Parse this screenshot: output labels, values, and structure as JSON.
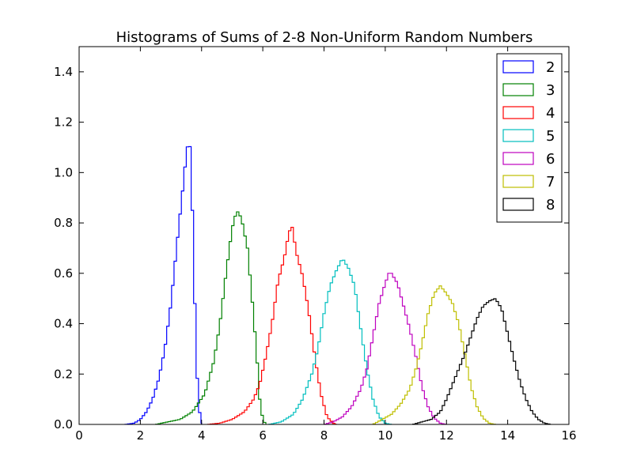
{
  "chart_data": {
    "type": "histogram",
    "histtype": "step",
    "title": "Histograms of Sums of 2-8 Non-Uniform Random Numbers",
    "xlabel": "",
    "ylabel": "",
    "xlim": [
      0,
      16
    ],
    "ylim": [
      0,
      1.5
    ],
    "xticks": [
      0,
      2,
      4,
      6,
      8,
      10,
      12,
      14,
      16
    ],
    "yticks": [
      0.0,
      0.2,
      0.4,
      0.6,
      0.8,
      1.0,
      1.2,
      1.4
    ],
    "xtick_labels": [
      "0",
      "2",
      "4",
      "6",
      "8",
      "10",
      "12",
      "14",
      "16"
    ],
    "ytick_labels": [
      "0.0",
      "0.2",
      "0.4",
      "0.6",
      "0.8",
      "1.0",
      "1.2",
      "1.4"
    ],
    "grid": false,
    "legend_position": "top-right",
    "series": [
      {
        "name": "2",
        "color": "#0000ff",
        "peak_x": 3.55,
        "peak_y": 1.11,
        "points": [
          [
            1.5,
            0
          ],
          [
            1.8,
            0.005
          ],
          [
            2.0,
            0.02
          ],
          [
            2.2,
            0.05
          ],
          [
            2.4,
            0.1
          ],
          [
            2.6,
            0.18
          ],
          [
            2.8,
            0.3
          ],
          [
            3.0,
            0.48
          ],
          [
            3.2,
            0.72
          ],
          [
            3.4,
            0.95
          ],
          [
            3.5,
            1.07
          ],
          [
            3.55,
            1.11
          ],
          [
            3.65,
            1.1
          ],
          [
            3.75,
            0.6
          ],
          [
            3.85,
            0.2
          ],
          [
            3.95,
            0.03
          ],
          [
            4.0,
            0
          ]
        ]
      },
      {
        "name": "3",
        "color": "#008000",
        "peak_x": 5.15,
        "peak_y": 0.85,
        "points": [
          [
            2.5,
            0
          ],
          [
            2.9,
            0.01
          ],
          [
            3.3,
            0.02
          ],
          [
            3.7,
            0.05
          ],
          [
            4.1,
            0.12
          ],
          [
            4.4,
            0.25
          ],
          [
            4.6,
            0.4
          ],
          [
            4.8,
            0.6
          ],
          [
            5.0,
            0.78
          ],
          [
            5.15,
            0.85
          ],
          [
            5.3,
            0.82
          ],
          [
            5.5,
            0.7
          ],
          [
            5.65,
            0.5
          ],
          [
            5.8,
            0.28
          ],
          [
            5.9,
            0.1
          ],
          [
            6.0,
            0.02
          ],
          [
            6.1,
            0
          ]
        ]
      },
      {
        "name": "4",
        "color": "#ff0000",
        "peak_x": 6.9,
        "peak_y": 0.79,
        "points": [
          [
            4.2,
            0
          ],
          [
            4.6,
            0.005
          ],
          [
            5.0,
            0.02
          ],
          [
            5.4,
            0.05
          ],
          [
            5.7,
            0.1
          ],
          [
            5.9,
            0.16
          ],
          [
            6.1,
            0.27
          ],
          [
            6.3,
            0.4
          ],
          [
            6.5,
            0.57
          ],
          [
            6.7,
            0.66
          ],
          [
            6.85,
            0.76
          ],
          [
            6.95,
            0.79
          ],
          [
            7.1,
            0.68
          ],
          [
            7.3,
            0.59
          ],
          [
            7.5,
            0.45
          ],
          [
            7.7,
            0.27
          ],
          [
            7.9,
            0.12
          ],
          [
            8.1,
            0.03
          ],
          [
            8.3,
            0.005
          ],
          [
            8.4,
            0
          ]
        ]
      },
      {
        "name": "5",
        "color": "#00bfbf",
        "peak_x": 8.6,
        "peak_y": 0.66,
        "points": [
          [
            6.2,
            0
          ],
          [
            6.6,
            0.01
          ],
          [
            7.0,
            0.04
          ],
          [
            7.3,
            0.1
          ],
          [
            7.6,
            0.2
          ],
          [
            7.8,
            0.3
          ],
          [
            8.0,
            0.44
          ],
          [
            8.2,
            0.55
          ],
          [
            8.4,
            0.61
          ],
          [
            8.6,
            0.66
          ],
          [
            8.8,
            0.62
          ],
          [
            9.0,
            0.55
          ],
          [
            9.2,
            0.38
          ],
          [
            9.4,
            0.22
          ],
          [
            9.6,
            0.1
          ],
          [
            9.8,
            0.03
          ],
          [
            10.0,
            0.005
          ],
          [
            10.2,
            0
          ]
        ]
      },
      {
        "name": "6",
        "color": "#bf00bf",
        "peak_x": 10.1,
        "peak_y": 0.61,
        "points": [
          [
            8.0,
            0
          ],
          [
            8.3,
            0.01
          ],
          [
            8.6,
            0.03
          ],
          [
            8.9,
            0.07
          ],
          [
            9.2,
            0.14
          ],
          [
            9.4,
            0.22
          ],
          [
            9.6,
            0.35
          ],
          [
            9.8,
            0.48
          ],
          [
            10.0,
            0.56
          ],
          [
            10.15,
            0.61
          ],
          [
            10.4,
            0.56
          ],
          [
            10.6,
            0.47
          ],
          [
            10.8,
            0.38
          ],
          [
            11.0,
            0.27
          ],
          [
            11.2,
            0.15
          ],
          [
            11.4,
            0.07
          ],
          [
            11.6,
            0.025
          ],
          [
            11.8,
            0.005
          ],
          [
            12.0,
            0
          ]
        ]
      },
      {
        "name": "7",
        "color": "#bfbf00",
        "peak_x": 11.8,
        "peak_y": 0.55,
        "points": [
          [
            9.6,
            0
          ],
          [
            9.9,
            0.02
          ],
          [
            10.2,
            0.04
          ],
          [
            10.5,
            0.08
          ],
          [
            10.8,
            0.14
          ],
          [
            11.0,
            0.22
          ],
          [
            11.2,
            0.32
          ],
          [
            11.4,
            0.44
          ],
          [
            11.6,
            0.52
          ],
          [
            11.8,
            0.55
          ],
          [
            12.0,
            0.52
          ],
          [
            12.2,
            0.48
          ],
          [
            12.4,
            0.4
          ],
          [
            12.6,
            0.28
          ],
          [
            12.8,
            0.15
          ],
          [
            13.0,
            0.07
          ],
          [
            13.2,
            0.025
          ],
          [
            13.4,
            0.005
          ],
          [
            13.6,
            0
          ]
        ]
      },
      {
        "name": "8",
        "color": "#000000",
        "peak_x": 13.6,
        "peak_y": 0.5,
        "points": [
          [
            10.9,
            0
          ],
          [
            11.2,
            0.01
          ],
          [
            11.5,
            0.02
          ],
          [
            11.8,
            0.05
          ],
          [
            12.0,
            0.1
          ],
          [
            12.2,
            0.16
          ],
          [
            12.4,
            0.22
          ],
          [
            12.6,
            0.28
          ],
          [
            12.8,
            0.35
          ],
          [
            13.0,
            0.42
          ],
          [
            13.2,
            0.47
          ],
          [
            13.4,
            0.49
          ],
          [
            13.6,
            0.5
          ],
          [
            13.8,
            0.46
          ],
          [
            14.0,
            0.36
          ],
          [
            14.2,
            0.26
          ],
          [
            14.4,
            0.17
          ],
          [
            14.6,
            0.1
          ],
          [
            14.8,
            0.05
          ],
          [
            15.0,
            0.02
          ],
          [
            15.2,
            0.005
          ],
          [
            15.4,
            0
          ]
        ]
      }
    ]
  }
}
